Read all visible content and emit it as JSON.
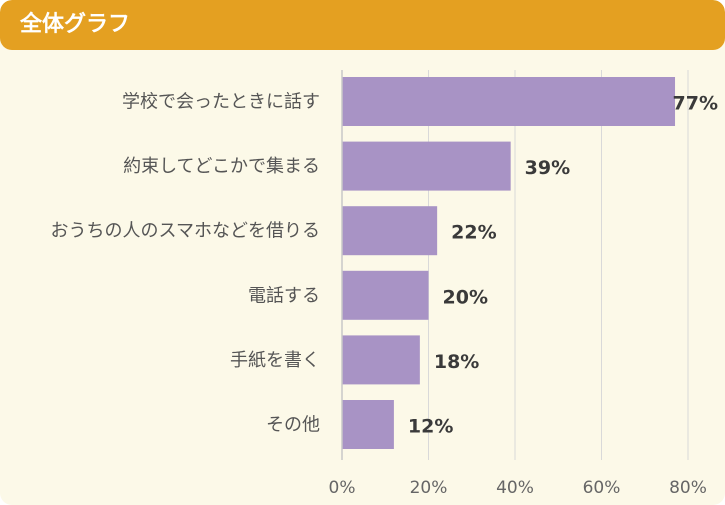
{
  "header": {
    "title": "全体グラフ"
  },
  "colors": {
    "bar": "#a893c5",
    "header": "#e4a021",
    "background": "#fcf9e8",
    "grid": "#d9d9d9"
  },
  "chart_data": {
    "type": "bar",
    "orientation": "horizontal",
    "categories": [
      "学校で会ったときに話す",
      "約束してどこかで集まる",
      "おうちの人のスマホなどを借りる",
      "電話する",
      "手紙を書く",
      "その他"
    ],
    "values": [
      77,
      39,
      22,
      20,
      18,
      12
    ],
    "value_labels": [
      "77%",
      "39%",
      "22%",
      "20%",
      "18%",
      "12%"
    ],
    "xlim": [
      0,
      80
    ],
    "xticks": [
      0,
      20,
      40,
      60,
      80
    ],
    "xtick_labels": [
      "0%",
      "20%",
      "40%",
      "60%",
      "80%"
    ],
    "grid": true,
    "legend": "none"
  }
}
